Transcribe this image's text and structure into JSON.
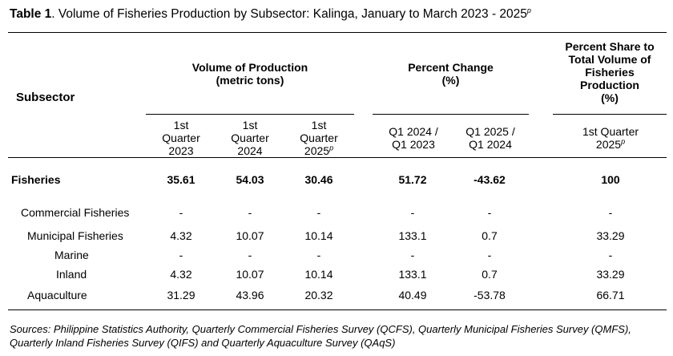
{
  "title": {
    "label": "Table 1",
    "text": ". Volume of Fisheries Production by Subsector: Kalinga, January to March 2023 - 2025",
    "sup": "p"
  },
  "headers": {
    "subsector": "Subsector",
    "volume_line1": "Volume of Production",
    "volume_line2": "(metric tons)",
    "pct_change_line1": "Percent Change",
    "pct_change_line2": "(%)",
    "share_line1": "Percent Share to",
    "share_line2": "Total Volume of",
    "share_line3": "Fisheries",
    "share_line4": "Production",
    "share_line5": "(%)",
    "sub": [
      {
        "l1": "1st",
        "l2": "Quarter",
        "l3": "2023",
        "sup": ""
      },
      {
        "l1": "1st",
        "l2": "Quarter",
        "l3": "2024",
        "sup": ""
      },
      {
        "l1": "1st",
        "l2": "Quarter",
        "l3": "2025",
        "sup": "p"
      },
      {
        "l1": "Q1 2024 /",
        "l2": "Q1 2023",
        "l3": "",
        "sup": ""
      },
      {
        "l1": "Q1 2025 /",
        "l2": "Q1 2024",
        "l3": "",
        "sup": ""
      },
      {
        "l1": "1st Quarter",
        "l2": "2025",
        "l3": "",
        "sup": "p"
      }
    ]
  },
  "rows": [
    {
      "label": "Fisheries",
      "values": [
        "35.61",
        "54.03",
        "30.46",
        "51.72",
        "-43.62",
        "100"
      ]
    },
    {
      "label": "Commercial Fisheries",
      "values": [
        "-",
        "-",
        "-",
        "-",
        "-",
        "-"
      ]
    },
    {
      "label": "Municipal Fisheries",
      "values": [
        "4.32",
        "10.07",
        "10.14",
        "133.1",
        "0.7",
        "33.29"
      ]
    },
    {
      "label": "Marine",
      "values": [
        "-",
        "-",
        "-",
        "-",
        "-",
        "-"
      ]
    },
    {
      "label": "Inland",
      "values": [
        "4.32",
        "10.07",
        "10.14",
        "133.1",
        "0.7",
        "33.29"
      ]
    },
    {
      "label": "Aquaculture",
      "values": [
        "31.29",
        "43.96",
        "20.32",
        "40.49",
        "-53.78",
        "66.71"
      ]
    }
  ],
  "sources": "Sources:  Philippine Statistics Authority, Quarterly Commercial Fisheries Survey (QCFS), Quarterly Municipal Fisheries Survey (QMFS), Quarterly Inland Fisheries Survey (QIFS) and Quarterly Aquaculture Survey (QAqS)"
}
